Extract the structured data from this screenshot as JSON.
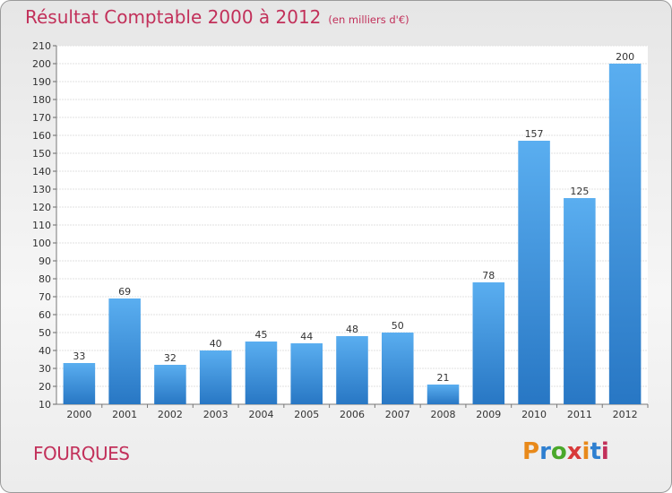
{
  "title": "Résultat Comptable 2000 à 2012",
  "subtitle": "(en milliers d'€)",
  "place": "FOURQUES",
  "brand": {
    "letters": [
      "P",
      "r",
      "o",
      "x",
      "i",
      "t",
      "i"
    ],
    "colors": [
      "#e8891a",
      "#2e7fd0",
      "#4aa82a",
      "#d83a3a",
      "#e8891a",
      "#2e7fd0",
      "#c2305a"
    ]
  },
  "colors": {
    "title": "#c2305a",
    "bar_light": "#5aaef0",
    "bar_dark": "#2877c4",
    "text": "#333333"
  },
  "chart_data": {
    "type": "bar",
    "categories": [
      "2000",
      "2001",
      "2002",
      "2003",
      "2004",
      "2005",
      "2006",
      "2007",
      "2008",
      "2009",
      "2010",
      "2011",
      "2012"
    ],
    "values": [
      33,
      69,
      32,
      40,
      45,
      44,
      48,
      50,
      21,
      78,
      157,
      125,
      200
    ],
    "ylim": [
      10,
      210
    ],
    "ytick_step": 10,
    "grid": true,
    "data_labels": true
  }
}
